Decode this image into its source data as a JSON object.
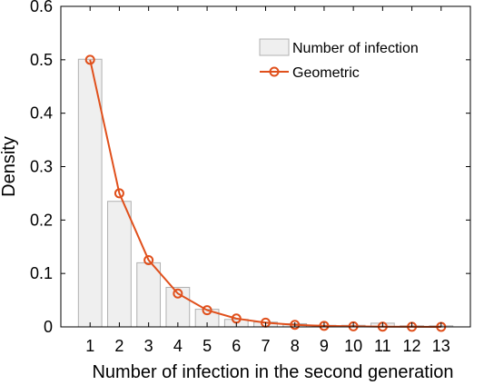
{
  "chart_data": {
    "type": "bar",
    "title": "",
    "xlabel": "Number of infection in the second generation",
    "ylabel": "Density",
    "x": [
      1,
      2,
      3,
      4,
      5,
      6,
      7,
      8,
      9,
      10,
      11,
      12,
      13
    ],
    "xlim": [
      0,
      14
    ],
    "ylim": [
      0,
      0.6
    ],
    "yticks": [
      0,
      0.1,
      0.2,
      0.3,
      0.4,
      0.5,
      0.6
    ],
    "ytick_labels": [
      "0",
      "0.1",
      "0.2",
      "0.3",
      "0.4",
      "0.5",
      "0.6"
    ],
    "grid": false,
    "legend_position": "top-right",
    "series": [
      {
        "name": "Number of infection",
        "type": "bar",
        "color": "#efefef",
        "edge_color": "#b0b0b0",
        "values": [
          0.501,
          0.235,
          0.12,
          0.074,
          0.033,
          0.014,
          0.009,
          0.006,
          0.003,
          0.003,
          0.007,
          0.002,
          0.002
        ]
      },
      {
        "name": "Geometric",
        "type": "line",
        "marker": "circle",
        "color": "#e0501c",
        "values": [
          0.5,
          0.25,
          0.125,
          0.0625,
          0.03125,
          0.015625,
          0.0078125,
          0.0039,
          0.002,
          0.001,
          0.0005,
          0.0002,
          0.0001
        ]
      }
    ]
  }
}
